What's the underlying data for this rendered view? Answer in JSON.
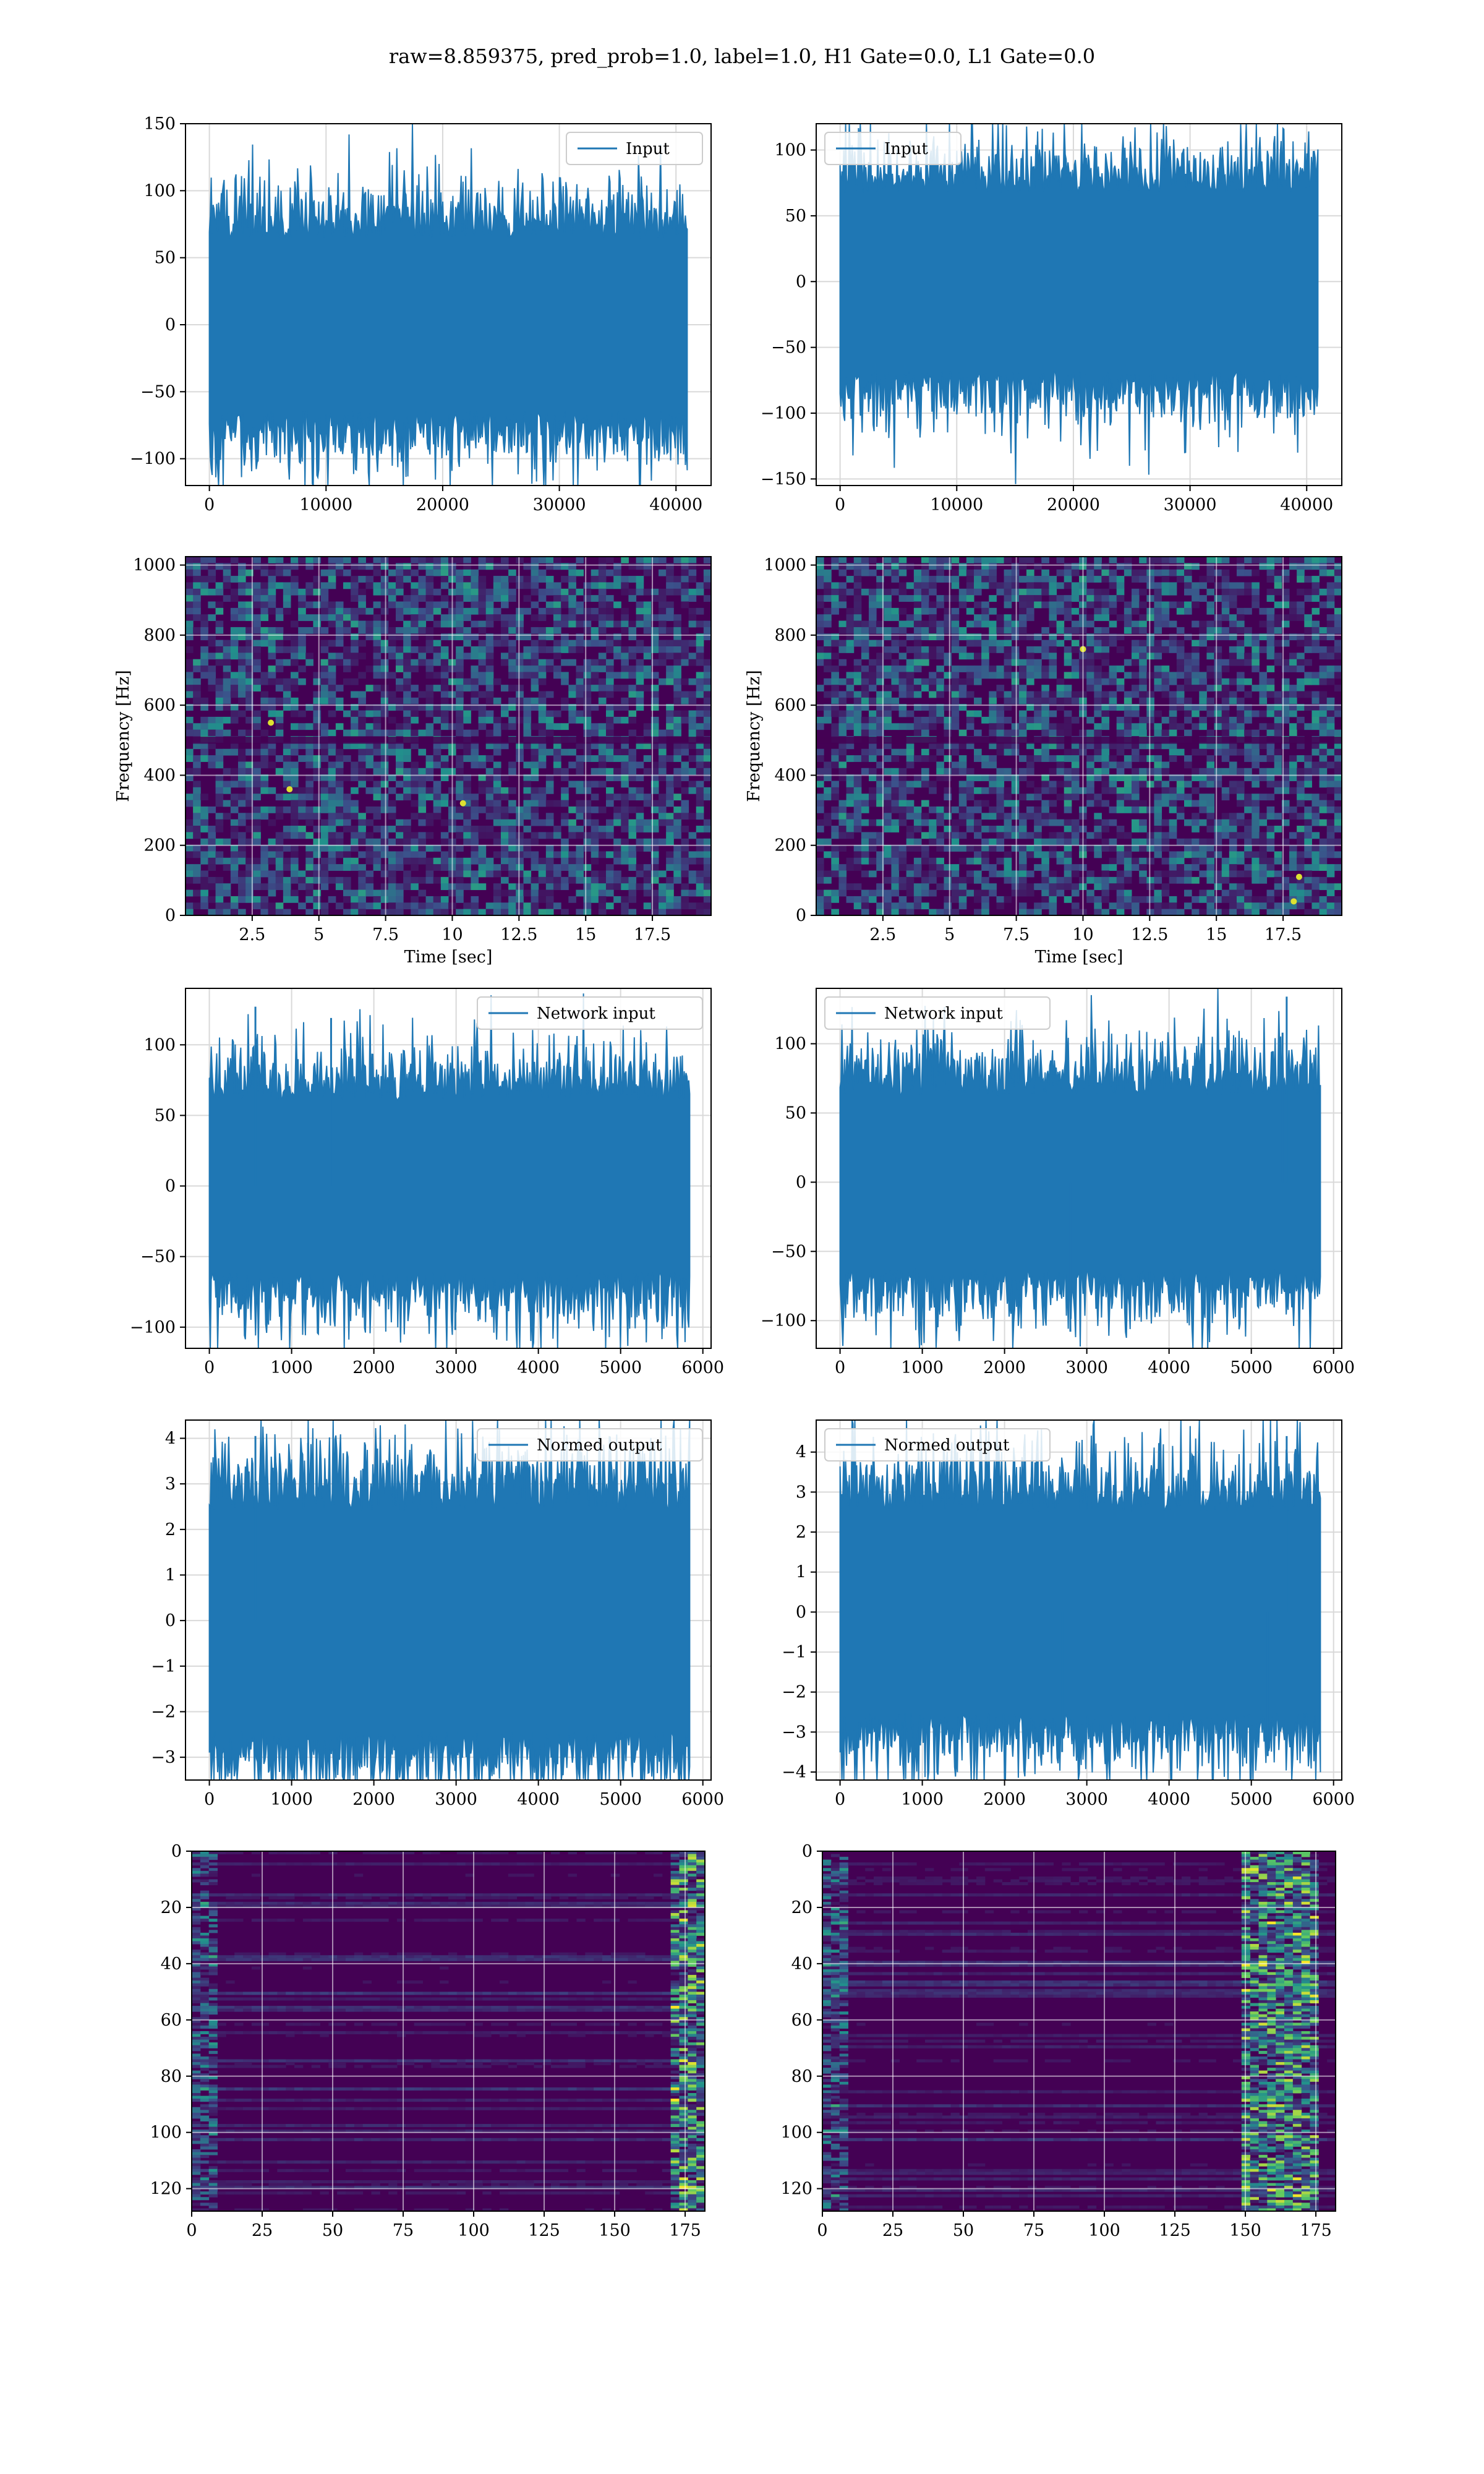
{
  "suptitle": "raw=8.859375, pred_prob=1.0, label=1.0, H1 Gate=0.0, L1 Gate=0.0",
  "colors": {
    "line": "#1f77b4",
    "grid": "#d9d9d9",
    "viridis_low": "#440154",
    "viridis_high": "#fde725"
  },
  "chart_data": [
    {
      "id": "h1-input",
      "type": "line",
      "legend": "Input",
      "legend_loc": "upper right",
      "grid": true,
      "xlim": [
        -2048,
        43008
      ],
      "ylim": [
        -120,
        150
      ],
      "xticks": [
        0,
        10000,
        20000,
        30000,
        40000
      ],
      "yticks": [
        -100,
        -50,
        0,
        50,
        100,
        150
      ],
      "signal": {
        "n": 40960,
        "amp": 72,
        "sigma": 25,
        "spikes": []
      }
    },
    {
      "id": "l1-input",
      "type": "line",
      "legend": "Input",
      "legend_loc": "upper left",
      "grid": true,
      "xlim": [
        -2048,
        43008
      ],
      "ylim": [
        -155,
        120
      ],
      "xticks": [
        0,
        10000,
        20000,
        30000,
        40000
      ],
      "yticks": [
        -150,
        -100,
        -50,
        0,
        50,
        100
      ],
      "signal": {
        "n": 40960,
        "amp": 75,
        "sigma": 25,
        "spikes": []
      }
    },
    {
      "id": "h1-spectrogram",
      "type": "heatmap",
      "colormap": "viridis",
      "grid": true,
      "xlabel": "Time [sec]",
      "ylabel": "Frequency [Hz]",
      "xlim": [
        0,
        19.7
      ],
      "ylim": [
        0,
        1024
      ],
      "xticks": [
        2.5,
        5.0,
        7.5,
        10.0,
        12.5,
        15.0,
        17.5
      ],
      "yticks": [
        0,
        200,
        400,
        600,
        800,
        1000
      ],
      "hot_spots": [
        {
          "t": 3.2,
          "f": 550
        },
        {
          "t": 3.9,
          "f": 360
        },
        {
          "t": 10.4,
          "f": 320
        }
      ]
    },
    {
      "id": "l1-spectrogram",
      "type": "heatmap",
      "colormap": "viridis",
      "grid": true,
      "xlabel": "Time [sec]",
      "ylabel": "Frequency [Hz]",
      "xlim": [
        0,
        19.7
      ],
      "ylim": [
        0,
        1024
      ],
      "xticks": [
        2.5,
        5.0,
        7.5,
        10.0,
        12.5,
        15.0,
        17.5
      ],
      "yticks": [
        0,
        200,
        400,
        600,
        800,
        1000
      ],
      "hot_spots": [
        {
          "t": 10.0,
          "f": 760
        },
        {
          "t": 18.1,
          "f": 110
        },
        {
          "t": 17.9,
          "f": 40
        }
      ]
    },
    {
      "id": "h1-network-input",
      "type": "line",
      "legend": "Network input",
      "legend_loc": "upper right",
      "grid": true,
      "xlim": [
        -290,
        6100
      ],
      "ylim": [
        -115,
        140
      ],
      "xticks": [
        0,
        1000,
        2000,
        3000,
        4000,
        5000,
        6000
      ],
      "yticks": [
        -100,
        -50,
        0,
        50,
        100
      ],
      "signal": {
        "n": 5840,
        "amp": 68,
        "sigma": 24,
        "spikes": [
          {
            "x": 560,
            "y": 127
          },
          {
            "x": 1480,
            "y": 119
          },
          {
            "x": 2990,
            "y": -102
          }
        ]
      }
    },
    {
      "id": "l1-network-input",
      "type": "line",
      "legend": "Network input",
      "legend_loc": "upper left",
      "grid": true,
      "xlim": [
        -290,
        6100
      ],
      "ylim": [
        -120,
        140
      ],
      "xticks": [
        0,
        1000,
        2000,
        3000,
        4000,
        5000,
        6000
      ],
      "yticks": [
        -100,
        -50,
        0,
        50,
        100
      ],
      "signal": {
        "n": 5840,
        "amp": 70,
        "sigma": 24,
        "spikes": [
          {
            "x": 5430,
            "y": 134
          },
          {
            "x": 5380,
            "y": 108
          },
          {
            "x": 2800,
            "y": -108
          }
        ]
      }
    },
    {
      "id": "h1-normed-output",
      "type": "line",
      "legend": "Normed output",
      "legend_loc": "upper right",
      "grid": true,
      "xlim": [
        -290,
        6100
      ],
      "ylim": [
        -3.5,
        4.4
      ],
      "xticks": [
        0,
        1000,
        2000,
        3000,
        4000,
        5000,
        6000
      ],
      "yticks": [
        -3,
        -2,
        -1,
        0,
        1,
        2,
        3,
        4
      ],
      "signal": {
        "n": 5840,
        "amp": 2.7,
        "sigma": 0.95,
        "spikes": [
          {
            "x": 560,
            "y": 4.05
          },
          {
            "x": 1200,
            "y": 3.9
          },
          {
            "x": 2990,
            "y": -3.3
          }
        ]
      }
    },
    {
      "id": "l1-normed-output",
      "type": "line",
      "legend": "Normed output",
      "legend_loc": "upper left",
      "grid": true,
      "xlim": [
        -290,
        6100
      ],
      "ylim": [
        -4.2,
        4.8
      ],
      "xticks": [
        0,
        1000,
        2000,
        3000,
        4000,
        5000,
        6000
      ],
      "yticks": [
        -4,
        -3,
        -2,
        -1,
        0,
        1,
        2,
        3,
        4
      ],
      "signal": {
        "n": 5840,
        "amp": 2.8,
        "sigma": 0.95,
        "spikes": [
          {
            "x": 5430,
            "y": 4.4
          },
          {
            "x": 2700,
            "y": -3.5
          },
          {
            "x": 5200,
            "y": -3.6
          }
        ]
      }
    },
    {
      "id": "h1-feature-map",
      "type": "heatmap",
      "colormap": "viridis",
      "grid": true,
      "xlim": [
        0,
        182
      ],
      "ylim": [
        128,
        0
      ],
      "xticks": [
        0,
        25,
        50,
        75,
        100,
        125,
        150,
        175
      ],
      "yticks": [
        0,
        20,
        40,
        60,
        80,
        100,
        120
      ],
      "bright_columns": [
        170,
        182
      ],
      "mid_columns": [
        0,
        10
      ]
    },
    {
      "id": "l1-feature-map",
      "type": "heatmap",
      "colormap": "viridis",
      "grid": true,
      "xlim": [
        0,
        182
      ],
      "ylim": [
        128,
        0
      ],
      "xticks": [
        0,
        25,
        50,
        75,
        100,
        125,
        150,
        175
      ],
      "yticks": [
        0,
        20,
        40,
        60,
        80,
        100,
        120
      ],
      "bright_columns": [
        150,
        175
      ],
      "mid_columns": [
        0,
        10
      ]
    }
  ]
}
